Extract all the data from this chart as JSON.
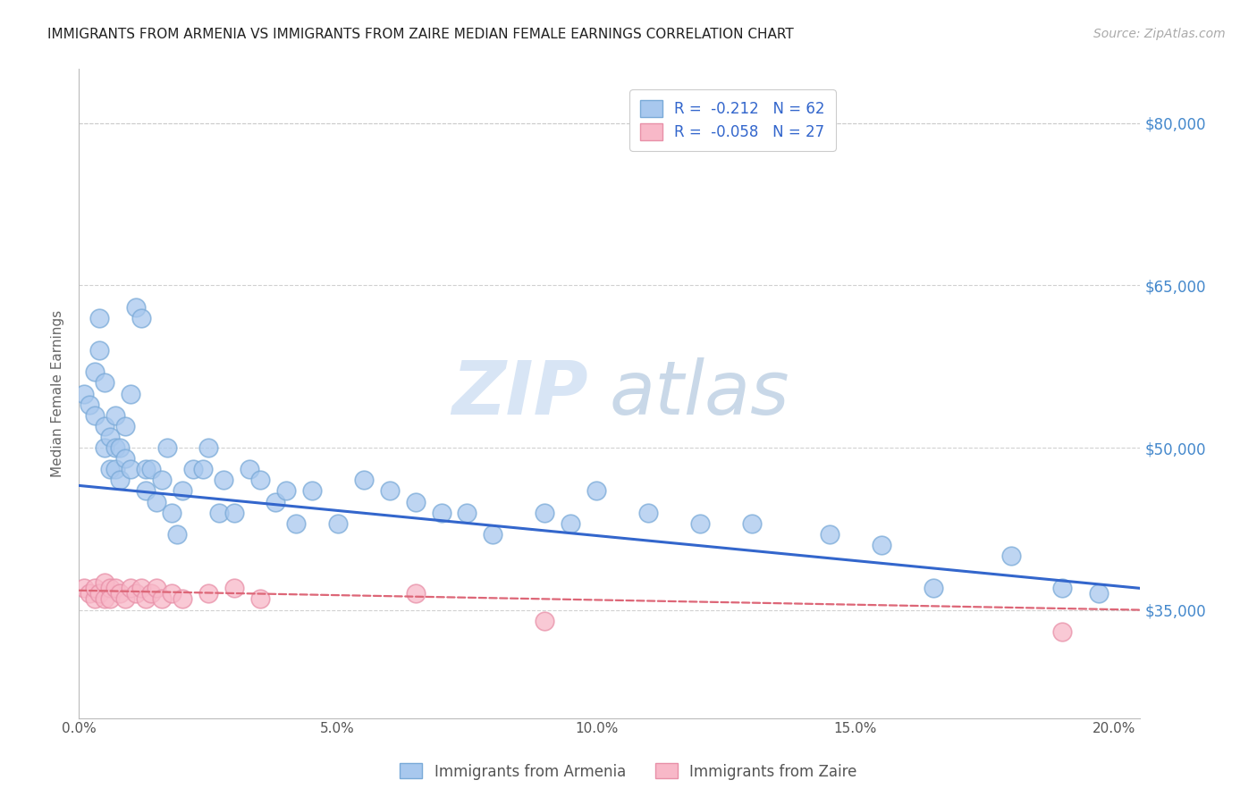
{
  "title": "IMMIGRANTS FROM ARMENIA VS IMMIGRANTS FROM ZAIRE MEDIAN FEMALE EARNINGS CORRELATION CHART",
  "source": "Source: ZipAtlas.com",
  "ylabel": "Median Female Earnings",
  "xlim": [
    0.0,
    0.205
  ],
  "ylim": [
    25000,
    85000
  ],
  "xtick_labels": [
    "0.0%",
    "5.0%",
    "10.0%",
    "15.0%",
    "20.0%"
  ],
  "xtick_positions": [
    0.0,
    0.05,
    0.1,
    0.15,
    0.2
  ],
  "ytick_labels": [
    "$35,000",
    "$50,000",
    "$65,000",
    "$80,000"
  ],
  "ytick_positions": [
    35000,
    50000,
    65000,
    80000
  ],
  "grid_color": "#cccccc",
  "background_color": "#ffffff",
  "watermark_zip": "ZIP",
  "watermark_atlas": "atlas",
  "legend_r_armenia": "R =  -0.212",
  "legend_n_armenia": "N = 62",
  "legend_r_zaire": "R =  -0.058",
  "legend_n_zaire": "N = 27",
  "armenia_color": "#a8c8ee",
  "armenia_edge_color": "#7aaad8",
  "zaire_color": "#f8b8c8",
  "zaire_edge_color": "#e890a8",
  "armenia_line_color": "#3366cc",
  "zaire_line_color": "#dd6677",
  "title_color": "#222222",
  "right_ytick_color": "#4488cc",
  "armenia_scatter_x": [
    0.001,
    0.002,
    0.003,
    0.003,
    0.004,
    0.004,
    0.005,
    0.005,
    0.005,
    0.006,
    0.006,
    0.007,
    0.007,
    0.007,
    0.008,
    0.008,
    0.009,
    0.009,
    0.01,
    0.01,
    0.011,
    0.012,
    0.013,
    0.013,
    0.014,
    0.015,
    0.016,
    0.017,
    0.018,
    0.019,
    0.02,
    0.022,
    0.024,
    0.025,
    0.027,
    0.028,
    0.03,
    0.033,
    0.035,
    0.038,
    0.04,
    0.042,
    0.045,
    0.05,
    0.055,
    0.06,
    0.065,
    0.07,
    0.075,
    0.08,
    0.09,
    0.095,
    0.1,
    0.11,
    0.12,
    0.13,
    0.145,
    0.155,
    0.165,
    0.18,
    0.19,
    0.197
  ],
  "armenia_scatter_y": [
    55000,
    54000,
    57000,
    53000,
    62000,
    59000,
    56000,
    52000,
    50000,
    51000,
    48000,
    53000,
    50000,
    48000,
    50000,
    47000,
    49000,
    52000,
    55000,
    48000,
    63000,
    62000,
    48000,
    46000,
    48000,
    45000,
    47000,
    50000,
    44000,
    42000,
    46000,
    48000,
    48000,
    50000,
    44000,
    47000,
    44000,
    48000,
    47000,
    45000,
    46000,
    43000,
    46000,
    43000,
    47000,
    46000,
    45000,
    44000,
    44000,
    42000,
    44000,
    43000,
    46000,
    44000,
    43000,
    43000,
    42000,
    41000,
    37000,
    40000,
    37000,
    36500
  ],
  "zaire_scatter_x": [
    0.001,
    0.002,
    0.003,
    0.003,
    0.004,
    0.005,
    0.005,
    0.006,
    0.006,
    0.007,
    0.008,
    0.009,
    0.01,
    0.011,
    0.012,
    0.013,
    0.014,
    0.015,
    0.016,
    0.018,
    0.02,
    0.025,
    0.03,
    0.035,
    0.065,
    0.09,
    0.19
  ],
  "zaire_scatter_y": [
    37000,
    36500,
    36000,
    37000,
    36500,
    37500,
    36000,
    37000,
    36000,
    37000,
    36500,
    36000,
    37000,
    36500,
    37000,
    36000,
    36500,
    37000,
    36000,
    36500,
    36000,
    36500,
    37000,
    36000,
    36500,
    34000,
    33000
  ],
  "armenia_line_x0": 0.0,
  "armenia_line_y0": 46500,
  "armenia_line_x1": 0.205,
  "armenia_line_y1": 37000,
  "zaire_line_x0": 0.0,
  "zaire_line_y0": 36800,
  "zaire_line_x1": 0.205,
  "zaire_line_y1": 35000
}
